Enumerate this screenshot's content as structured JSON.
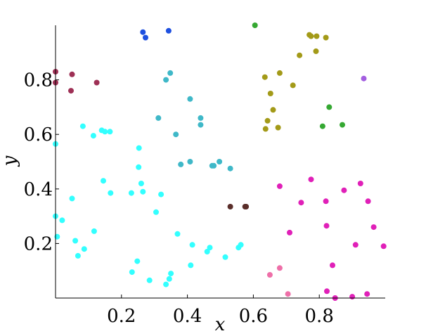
{
  "chart_data": {
    "type": "scatter",
    "title": "",
    "xlabel": "x",
    "ylabel": "y",
    "xlim": [
      0.0,
      1.0
    ],
    "ylim": [
      0.0,
      1.0
    ],
    "grid": false,
    "legend": "none",
    "x_ticks": [
      {
        "value": 0.2,
        "label": "0.2"
      },
      {
        "value": 0.4,
        "label": "0.4"
      },
      {
        "value": 0.6,
        "label": "0.6"
      },
      {
        "value": 0.8,
        "label": "0.8"
      }
    ],
    "y_ticks": [
      {
        "value": 0.2,
        "label": "0.2"
      },
      {
        "value": 0.4,
        "label": "0.4"
      },
      {
        "value": 0.6,
        "label": "0.6"
      },
      {
        "value": 0.8,
        "label": "0.8"
      }
    ],
    "series": [
      {
        "color": "#1e50e0",
        "points": [
          [
            0.265,
            0.975
          ],
          [
            0.273,
            0.955
          ],
          [
            0.343,
            0.98
          ]
        ]
      },
      {
        "color": "#9e3055",
        "points": [
          [
            0.0,
            0.83
          ],
          [
            0.0,
            0.79
          ],
          [
            0.047,
            0.76
          ],
          [
            0.05,
            0.82
          ],
          [
            0.125,
            0.79
          ]
        ]
      },
      {
        "color": "#33ffff",
        "points": [
          [
            0.0,
            0.565
          ],
          [
            0.0,
            0.3
          ],
          [
            0.005,
            0.225
          ],
          [
            0.02,
            0.285
          ],
          [
            0.05,
            0.365
          ],
          [
            0.06,
            0.21
          ],
          [
            0.068,
            0.155
          ],
          [
            0.083,
            0.63
          ],
          [
            0.087,
            0.18
          ],
          [
            0.115,
            0.595
          ],
          [
            0.117,
            0.245
          ],
          [
            0.14,
            0.615
          ],
          [
            0.145,
            0.43
          ],
          [
            0.15,
            0.61
          ],
          [
            0.165,
            0.61
          ],
          [
            0.167,
            0.385
          ],
          [
            0.23,
            0.385
          ],
          [
            0.232,
            0.095
          ],
          [
            0.248,
            0.135
          ],
          [
            0.252,
            0.48
          ],
          [
            0.253,
            0.55
          ],
          [
            0.26,
            0.42
          ],
          [
            0.265,
            0.39
          ],
          [
            0.285,
            0.065
          ],
          [
            0.305,
            0.315
          ],
          [
            0.32,
            0.38
          ],
          [
            0.335,
            0.05
          ],
          [
            0.345,
            0.07
          ],
          [
            0.35,
            0.09
          ],
          [
            0.37,
            0.235
          ],
          [
            0.41,
            0.12
          ],
          [
            0.415,
            0.195
          ],
          [
            0.46,
            0.17
          ],
          [
            0.468,
            0.185
          ],
          [
            0.515,
            0.15
          ],
          [
            0.555,
            0.185
          ],
          [
            0.562,
            0.195
          ]
        ]
      },
      {
        "color": "#3fb8c8",
        "points": [
          [
            0.335,
            0.8
          ],
          [
            0.348,
            0.825
          ],
          [
            0.312,
            0.66
          ],
          [
            0.365,
            0.6
          ],
          [
            0.38,
            0.49
          ],
          [
            0.408,
            0.5
          ],
          [
            0.408,
            0.73
          ],
          [
            0.44,
            0.66
          ],
          [
            0.44,
            0.635
          ],
          [
            0.475,
            0.485
          ],
          [
            0.48,
            0.485
          ],
          [
            0.497,
            0.5
          ],
          [
            0.53,
            0.475
          ]
        ]
      },
      {
        "color": "#5a2e2a",
        "points": [
          [
            0.53,
            0.335
          ],
          [
            0.575,
            0.335
          ],
          [
            0.578,
            0.335
          ]
        ]
      },
      {
        "color": "#35a832",
        "points": [
          [
            0.605,
            1.0
          ],
          [
            0.81,
            0.63
          ],
          [
            0.83,
            0.7
          ],
          [
            0.87,
            0.635
          ]
        ]
      },
      {
        "color": "#a39a18",
        "points": [
          [
            0.635,
            0.81
          ],
          [
            0.637,
            0.62
          ],
          [
            0.643,
            0.65
          ],
          [
            0.652,
            0.75
          ],
          [
            0.66,
            0.69
          ],
          [
            0.675,
            0.625
          ],
          [
            0.68,
            0.825
          ],
          [
            0.72,
            0.78
          ],
          [
            0.74,
            0.89
          ],
          [
            0.77,
            0.965
          ],
          [
            0.775,
            0.96
          ],
          [
            0.79,
            0.905
          ],
          [
            0.792,
            0.96
          ],
          [
            0.82,
            0.955
          ]
        ]
      },
      {
        "color": "#a35ee0",
        "points": [
          [
            0.935,
            0.805
          ]
        ]
      },
      {
        "color": "#e020b8",
        "points": [
          [
            0.68,
            0.41
          ],
          [
            0.71,
            0.24
          ],
          [
            0.745,
            0.35
          ],
          [
            0.775,
            0.435
          ],
          [
            0.82,
            0.355
          ],
          [
            0.822,
            0.265
          ],
          [
            0.823,
            0.025
          ],
          [
            0.84,
            0.12
          ],
          [
            0.848,
            0.0
          ],
          [
            0.875,
            0.395
          ],
          [
            0.9,
            0.005
          ],
          [
            0.91,
            0.195
          ],
          [
            0.925,
            0.42
          ],
          [
            0.945,
            0.015
          ],
          [
            0.948,
            0.355
          ],
          [
            0.965,
            0.26
          ],
          [
            0.995,
            0.19
          ]
        ]
      },
      {
        "color": "#ee6fa8",
        "points": [
          [
            0.65,
            0.085
          ],
          [
            0.68,
            0.11
          ],
          [
            0.705,
            0.015
          ]
        ]
      }
    ]
  }
}
